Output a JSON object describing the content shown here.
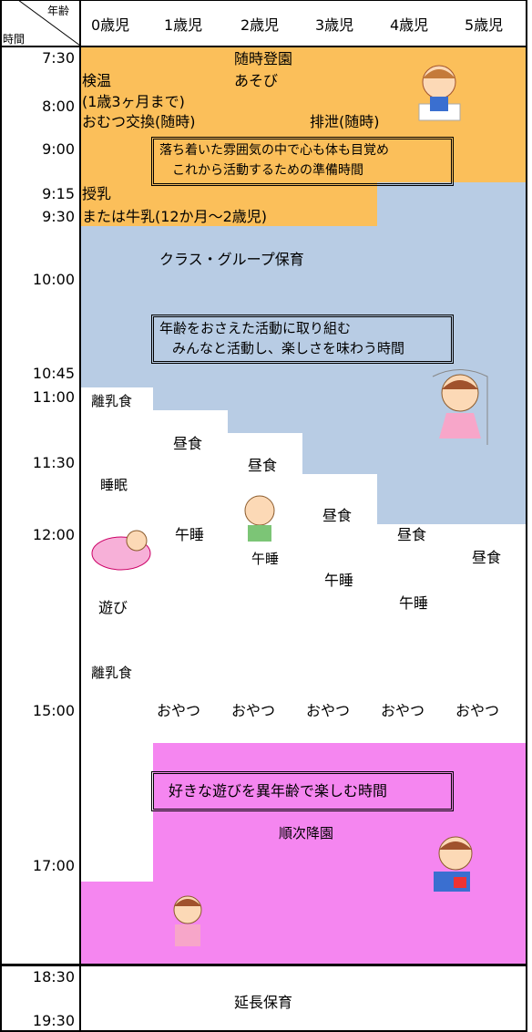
{
  "header": {
    "age_label": "年齢",
    "time_label": "時間",
    "ages": [
      "0歳児",
      "1歳児",
      "2歳児",
      "3歳児",
      "4歳児",
      "5歳児"
    ]
  },
  "times": [
    "7:30",
    "8:00",
    "9:00",
    "9:15",
    "9:30",
    "10:00",
    "10:45",
    "11:00",
    "11:30",
    "12:00",
    "15:00",
    "17:00",
    "18:30",
    "19:30"
  ],
  "activities": [
    "随時登園",
    "あそび",
    "検温",
    "(1歳3ヶ月まで)",
    "おむつ交換(随時)",
    "排泄(随時)",
    "授乳",
    "または牛乳(12か月～2歳児)",
    "クラス・グループ保育",
    "離乳食",
    "昼食",
    "昼食",
    "睡眠",
    "昼食",
    "午睡",
    "昼食",
    "午睡",
    "昼食",
    "午睡",
    "遊び",
    "午睡",
    "離乳食",
    "おやつ",
    "おやつ",
    "おやつ",
    "おやつ",
    "おやつ",
    "順次降園",
    "延長保育"
  ],
  "boxes": [
    {
      "lines": [
        "落ち着いた雰囲気の中で心も体も目覚め",
        "これから活動するための準備時間"
      ]
    },
    {
      "lines": [
        "年齢をおさえた活動に取り組む",
        "みんなと活動し、楽しさを味わう時間"
      ]
    },
    {
      "lines": [
        "好きな遊びを異年齢で楽しむ時間"
      ]
    }
  ]
}
